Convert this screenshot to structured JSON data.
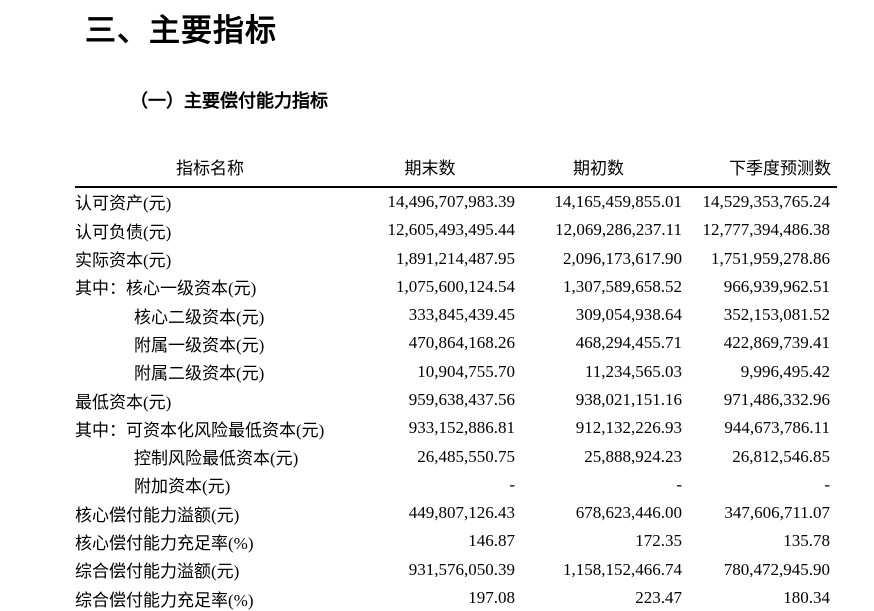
{
  "colors": {
    "text": "#000000",
    "background": "#ffffff",
    "table_rule": "#000000"
  },
  "document": {
    "section_heading": "三、主要指标",
    "subsection_heading": "（一）主要偿付能力指标",
    "table": {
      "columns": [
        "指标名称",
        "期末数",
        "期初数",
        "下季度预测数"
      ],
      "rows": [
        {
          "label": "认可资产(元)",
          "indent": false,
          "values": [
            "14,496,707,983.39",
            "14,165,459,855.01",
            "14,529,353,765.24"
          ]
        },
        {
          "label": "认可负债(元)",
          "indent": false,
          "values": [
            "12,605,493,495.44",
            "12,069,286,237.11",
            "12,777,394,486.38"
          ]
        },
        {
          "label": "实际资本(元)",
          "indent": false,
          "values": [
            "1,891,214,487.95",
            "2,096,173,617.90",
            "1,751,959,278.86"
          ]
        },
        {
          "label": "其中：核心一级资本(元)",
          "indent": false,
          "values": [
            "1,075,600,124.54",
            "1,307,589,658.52",
            "966,939,962.51"
          ]
        },
        {
          "label": "核心二级资本(元)",
          "indent": true,
          "values": [
            "333,845,439.45",
            "309,054,938.64",
            "352,153,081.52"
          ]
        },
        {
          "label": "附属一级资本(元)",
          "indent": true,
          "values": [
            "470,864,168.26",
            "468,294,455.71",
            "422,869,739.41"
          ]
        },
        {
          "label": "附属二级资本(元)",
          "indent": true,
          "values": [
            "10,904,755.70",
            "11,234,565.03",
            "9,996,495.42"
          ]
        },
        {
          "label": "最低资本(元)",
          "indent": false,
          "values": [
            "959,638,437.56",
            "938,021,151.16",
            "971,486,332.96"
          ]
        },
        {
          "label": "其中：可资本化风险最低资本(元)",
          "indent": false,
          "values": [
            "933,152,886.81",
            "912,132,226.93",
            "944,673,786.11"
          ]
        },
        {
          "label": "控制风险最低资本(元)",
          "indent": true,
          "values": [
            "26,485,550.75",
            "25,888,924.23",
            "26,812,546.85"
          ]
        },
        {
          "label": "附加资本(元)",
          "indent": true,
          "values": [
            "-",
            "-",
            "-"
          ]
        },
        {
          "label": "核心偿付能力溢额(元)",
          "indent": false,
          "values": [
            "449,807,126.43",
            "678,623,446.00",
            "347,606,711.07"
          ]
        },
        {
          "label": "核心偿付能力充足率(%)",
          "indent": false,
          "values": [
            "146.87",
            "172.35",
            "135.78"
          ]
        },
        {
          "label": "综合偿付能力溢额(元)",
          "indent": false,
          "values": [
            "931,576,050.39",
            "1,158,152,466.74",
            "780,472,945.90"
          ]
        },
        {
          "label": "综合偿付能力充足率(%)",
          "indent": false,
          "values": [
            "197.08",
            "223.47",
            "180.34"
          ]
        }
      ]
    }
  }
}
